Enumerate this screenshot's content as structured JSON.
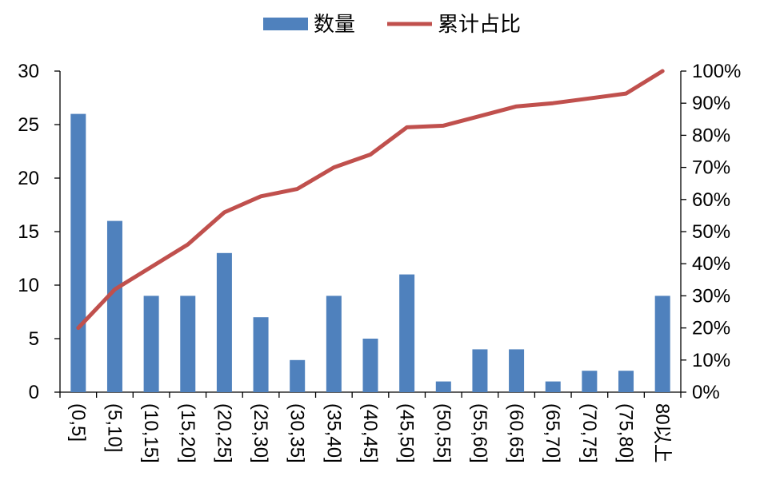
{
  "chart_data": {
    "type": "bar",
    "categories": [
      "(0,5]",
      "(5,10]",
      "(10,15]",
      "(15,20]",
      "(20,25]",
      "(25,30]",
      "(30,35]",
      "(35,40]",
      "(40,45]",
      "(45,50]",
      "(50,55]",
      "(55,60]",
      "(60,65]",
      "(65,70]",
      "(70,75]",
      "(75,80]",
      "80以上"
    ],
    "series": [
      {
        "name": "数量",
        "type": "bar",
        "axis": "left",
        "color": "#4f81bd",
        "values": [
          26,
          16,
          9,
          9,
          13,
          7,
          3,
          9,
          5,
          11,
          1,
          4,
          4,
          1,
          2,
          2,
          9
        ]
      },
      {
        "name": "累计占比",
        "type": "line",
        "axis": "right",
        "color": "#c0504d",
        "values": [
          0.2,
          0.32,
          0.39,
          0.46,
          0.56,
          0.61,
          0.633,
          0.7,
          0.74,
          0.825,
          0.83,
          0.86,
          0.89,
          0.9,
          0.915,
          0.93,
          1.0
        ]
      }
    ],
    "y_left": {
      "ylim": [
        0,
        30
      ],
      "ticks": [
        "0",
        "5",
        "10",
        "15",
        "20",
        "25",
        "30"
      ]
    },
    "y_right": {
      "ylim": [
        0,
        1
      ],
      "ticks": [
        "0%",
        "10%",
        "20%",
        "30%",
        "40%",
        "50%",
        "60%",
        "70%",
        "80%",
        "90%",
        "100%"
      ]
    },
    "legend": {
      "position": "top-center",
      "items": [
        "数量",
        "累计占比"
      ]
    },
    "grid": false,
    "title": "",
    "xlabel": "",
    "ylabel": ""
  }
}
